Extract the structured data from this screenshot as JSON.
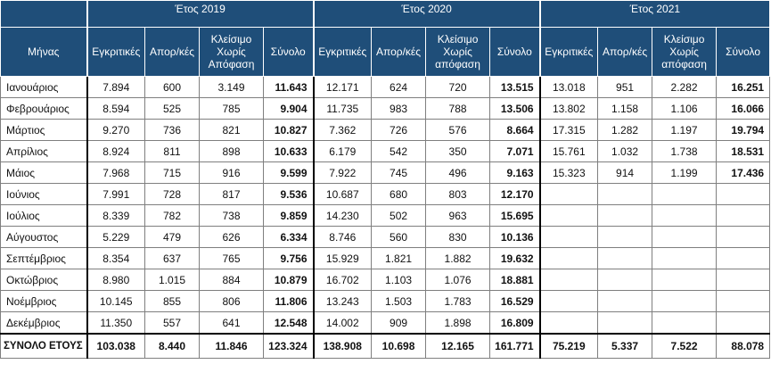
{
  "years": [
    "Έτος 2019",
    "Έτος 2020",
    "Έτος 2021"
  ],
  "headers": {
    "month": "Μήνας",
    "approved": "Εγκριτικές",
    "rejected": "Απορ/κές",
    "closed_2019": "Κλείσιμο Χωρίς Απόφαση",
    "closed_other": "Κλείσιμο Χωρίς απόφαση",
    "total": "Σύνολο"
  },
  "rows": [
    {
      "month": "Ιανουάριος",
      "y2019": [
        "7.894",
        "600",
        "3.149",
        "11.643"
      ],
      "y2020": [
        "12.171",
        "624",
        "720",
        "13.515"
      ],
      "y2021": [
        "13.018",
        "951",
        "2.282",
        "16.251"
      ]
    },
    {
      "month": "Φεβρουάριος",
      "y2019": [
        "8.594",
        "525",
        "785",
        "9.904"
      ],
      "y2020": [
        "11.735",
        "983",
        "788",
        "13.506"
      ],
      "y2021": [
        "13.802",
        "1.158",
        "1.106",
        "16.066"
      ]
    },
    {
      "month": "Μάρτιος",
      "y2019": [
        "9.270",
        "736",
        "821",
        "10.827"
      ],
      "y2020": [
        "7.362",
        "726",
        "576",
        "8.664"
      ],
      "y2021": [
        "17.315",
        "1.282",
        "1.197",
        "19.794"
      ]
    },
    {
      "month": "Απρίλιος",
      "y2019": [
        "8.924",
        "811",
        "898",
        "10.633"
      ],
      "y2020": [
        "6.179",
        "542",
        "350",
        "7.071"
      ],
      "y2021": [
        "15.761",
        "1.032",
        "1.738",
        "18.531"
      ]
    },
    {
      "month": "Μάιος",
      "y2019": [
        "7.968",
        "715",
        "916",
        "9.599"
      ],
      "y2020": [
        "7.922",
        "745",
        "496",
        "9.163"
      ],
      "y2021": [
        "15.323",
        "914",
        "1.199",
        "17.436"
      ]
    },
    {
      "month": "Ιούνιος",
      "y2019": [
        "7.991",
        "728",
        "817",
        "9.536"
      ],
      "y2020": [
        "10.687",
        "680",
        "803",
        "12.170"
      ],
      "y2021": [
        "",
        "",
        "",
        ""
      ]
    },
    {
      "month": "Ιούλιος",
      "y2019": [
        "8.339",
        "782",
        "738",
        "9.859"
      ],
      "y2020": [
        "14.230",
        "502",
        "963",
        "15.695"
      ],
      "y2021": [
        "",
        "",
        "",
        ""
      ]
    },
    {
      "month": "Αύγουστος",
      "y2019": [
        "5.229",
        "479",
        "626",
        "6.334"
      ],
      "y2020": [
        "8.746",
        "560",
        "830",
        "10.136"
      ],
      "y2021": [
        "",
        "",
        "",
        ""
      ]
    },
    {
      "month": "Σεπτέμβριος",
      "y2019": [
        "8.354",
        "637",
        "765",
        "9.756"
      ],
      "y2020": [
        "15.929",
        "1.821",
        "1.882",
        "19.632"
      ],
      "y2021": [
        "",
        "",
        "",
        ""
      ]
    },
    {
      "month": "Οκτώβριος",
      "y2019": [
        "8.980",
        "1.015",
        "884",
        "10.879"
      ],
      "y2020": [
        "16.702",
        "1.103",
        "1.076",
        "18.881"
      ],
      "y2021": [
        "",
        "",
        "",
        ""
      ]
    },
    {
      "month": "Νοέμβριος",
      "y2019": [
        "10.145",
        "855",
        "806",
        "11.806"
      ],
      "y2020": [
        "13.243",
        "1.503",
        "1.783",
        "16.529"
      ],
      "y2021": [
        "",
        "",
        "",
        ""
      ]
    },
    {
      "month": "Δεκέμβριος",
      "y2019": [
        "11.350",
        "557",
        "641",
        "12.548"
      ],
      "y2020": [
        "14.002",
        "909",
        "1.898",
        "16.809"
      ],
      "y2021": [
        "",
        "",
        "",
        ""
      ]
    }
  ],
  "summary": {
    "label": "ΣΥΝΟΛΟ ΕΤΟΥΣ",
    "y2019": [
      "103.038",
      "8.440",
      "11.846",
      "123.324"
    ],
    "y2020": [
      "138.908",
      "10.698",
      "12.165",
      "161.771"
    ],
    "y2021": [
      "75.219",
      "5.337",
      "7.522",
      "88.078"
    ]
  },
  "colors": {
    "header_bg": "#1f4e79",
    "header_text": "#ffffff"
  }
}
